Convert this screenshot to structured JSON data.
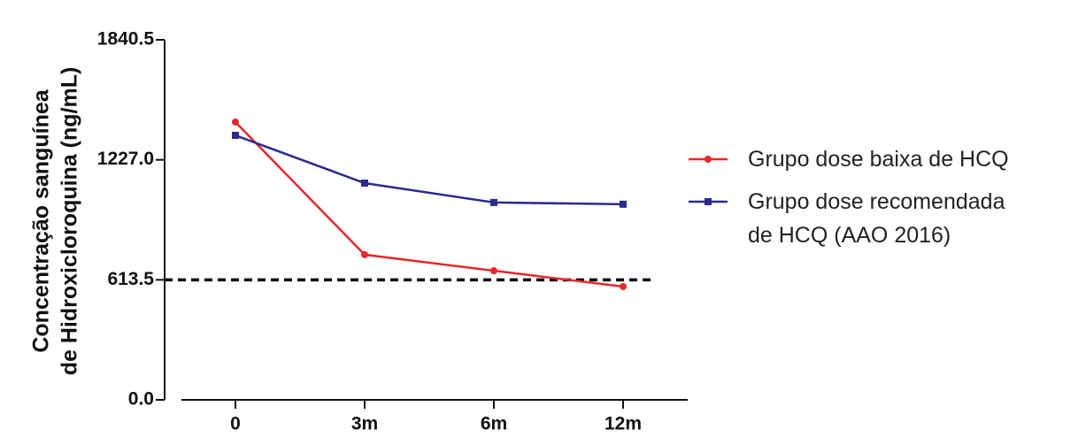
{
  "chart_data": {
    "type": "line",
    "y_label": [
      "Concentração sanguínea",
      "de Hidroxicloroquina (ng/mL)"
    ],
    "categories": [
      "0",
      "3m",
      "6m",
      "12m"
    ],
    "series": [
      {
        "name": "Grupo dose baixa de HCQ",
        "color": "#e8262a",
        "marker": "circle",
        "values": [
          1420,
          742,
          660,
          579
        ]
      },
      {
        "name": "Grupo dose recomendada de HCQ (AAO 2016)",
        "color": "#2b2a8f",
        "marker": "square",
        "values": [
          1352,
          1108,
          1009,
          1000
        ]
      }
    ],
    "ylim": [
      0,
      1840.5
    ],
    "yticks": [
      {
        "value": 0,
        "label": "0.0"
      },
      613.5,
      {
        "value": 1227,
        "label": "1227.0"
      },
      1840.5
    ],
    "reference_line": 613.5,
    "legend": "right"
  }
}
